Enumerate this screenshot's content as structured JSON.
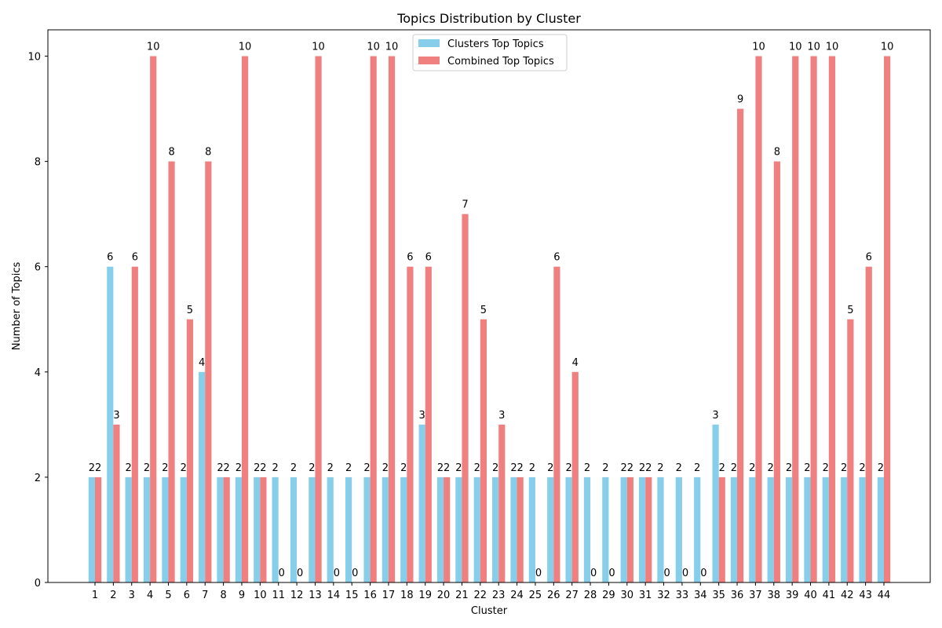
{
  "chart_data": {
    "type": "bar",
    "title": "Topics Distribution by Cluster",
    "xlabel": "Cluster",
    "ylabel": "Number of Topics",
    "categories": [
      "1",
      "2",
      "3",
      "4",
      "5",
      "6",
      "7",
      "8",
      "9",
      "10",
      "11",
      "12",
      "13",
      "14",
      "15",
      "16",
      "17",
      "18",
      "19",
      "20",
      "21",
      "22",
      "23",
      "24",
      "25",
      "26",
      "27",
      "28",
      "29",
      "30",
      "31",
      "32",
      "33",
      "34",
      "35",
      "36",
      "37",
      "38",
      "39",
      "40",
      "41",
      "42",
      "43",
      "44"
    ],
    "series": [
      {
        "name": "Clusters Top Topics",
        "color": "#87ceeb",
        "values": [
          2,
          6,
          2,
          2,
          2,
          2,
          4,
          2,
          2,
          2,
          2,
          2,
          2,
          2,
          2,
          2,
          2,
          2,
          3,
          2,
          2,
          2,
          2,
          2,
          2,
          2,
          2,
          2,
          2,
          2,
          2,
          2,
          2,
          2,
          3,
          2,
          2,
          2,
          2,
          2,
          2,
          2,
          2,
          2
        ]
      },
      {
        "name": "Combined Top Topics",
        "color": "#f08080",
        "values": [
          2,
          3,
          6,
          10,
          8,
          5,
          8,
          2,
          10,
          2,
          0,
          0,
          10,
          0,
          0,
          10,
          10,
          6,
          6,
          2,
          7,
          5,
          3,
          2,
          0,
          6,
          4,
          0,
          0,
          2,
          2,
          0,
          0,
          0,
          2,
          9,
          10,
          8,
          10,
          10,
          10,
          5,
          6,
          10
        ]
      }
    ],
    "ylim": [
      0,
      10.5
    ],
    "yticks": [
      0,
      2,
      4,
      6,
      8,
      10
    ],
    "grid": false,
    "legend_position": "top-center"
  }
}
